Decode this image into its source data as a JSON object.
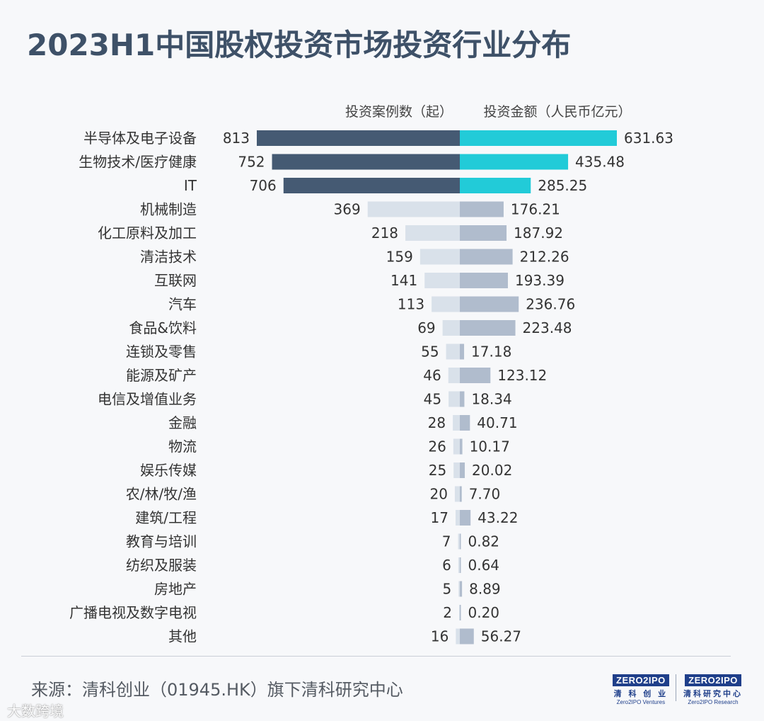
{
  "title": "2023H1中国股权投资市场投资行业分布",
  "source": "来源：清科创业（01945.HK）旗下清科研究中心",
  "logos": [
    {
      "box": "ZERO2IPO",
      "cn": "清 科 创 业",
      "en": "Zero2IPO Ventures"
    },
    {
      "box": "ZERO2IPO",
      "cn": "清科研究中心",
      "en": "Zero2IPO Research"
    }
  ],
  "watermark": "大数跨境",
  "colors": {
    "count_top": "#455a73",
    "amount_top": "#22cbd8",
    "count_rest": "#d9e1ea",
    "amount_rest": "#b0bccd",
    "label_text": "#333333",
    "title": "#3e5168"
  },
  "chart_data": {
    "type": "bar",
    "orientation": "horizontal-diverging",
    "left_header": "投资案例数（起）",
    "right_header": "投资金额（人民币亿元）",
    "highlight_top_n": 3,
    "categories": [
      "半导体及电子设备",
      "生物技术/医疗健康",
      "IT",
      "机械制造",
      "化工原料及加工",
      "清洁技术",
      "互联网",
      "汽车",
      "食品&饮料",
      "连锁及零售",
      "能源及矿产",
      "电信及增值业务",
      "金融",
      "物流",
      "娱乐传媒",
      "农/林/牧/渔",
      "建筑/工程",
      "教育与培训",
      "纺织及服装",
      "房地产",
      "广播电视及数字电视",
      "其他"
    ],
    "series": [
      {
        "name": "投资案例数（起）",
        "side": "left",
        "values": [
          813,
          752,
          706,
          369,
          218,
          159,
          141,
          113,
          69,
          55,
          46,
          45,
          28,
          26,
          25,
          20,
          17,
          7,
          6,
          5,
          2,
          16
        ],
        "labels": [
          "813",
          "752",
          "706",
          "369",
          "218",
          "159",
          "141",
          "113",
          "69",
          "55",
          "46",
          "45",
          "28",
          "26",
          "25",
          "20",
          "17",
          "7",
          "6",
          "5",
          "2",
          "16"
        ]
      },
      {
        "name": "投资金额（人民币亿元）",
        "side": "right",
        "values": [
          631.63,
          435.48,
          285.25,
          176.21,
          187.92,
          212.26,
          193.39,
          236.76,
          223.48,
          17.18,
          123.12,
          18.34,
          40.71,
          10.17,
          20.02,
          7.7,
          43.22,
          0.82,
          0.64,
          8.89,
          0.2,
          56.27
        ],
        "labels": [
          "631.63",
          "435.48",
          "285.25",
          "176.21",
          "187.92",
          "212.26",
          "193.39",
          "236.76",
          "223.48",
          "17.18",
          "123.12",
          "18.34",
          "40.71",
          "10.17",
          "20.02",
          "7.70",
          "43.22",
          "0.82",
          "0.64",
          "8.89",
          "0.20",
          "56.27"
        ]
      }
    ],
    "grid": false,
    "legend": "none"
  }
}
